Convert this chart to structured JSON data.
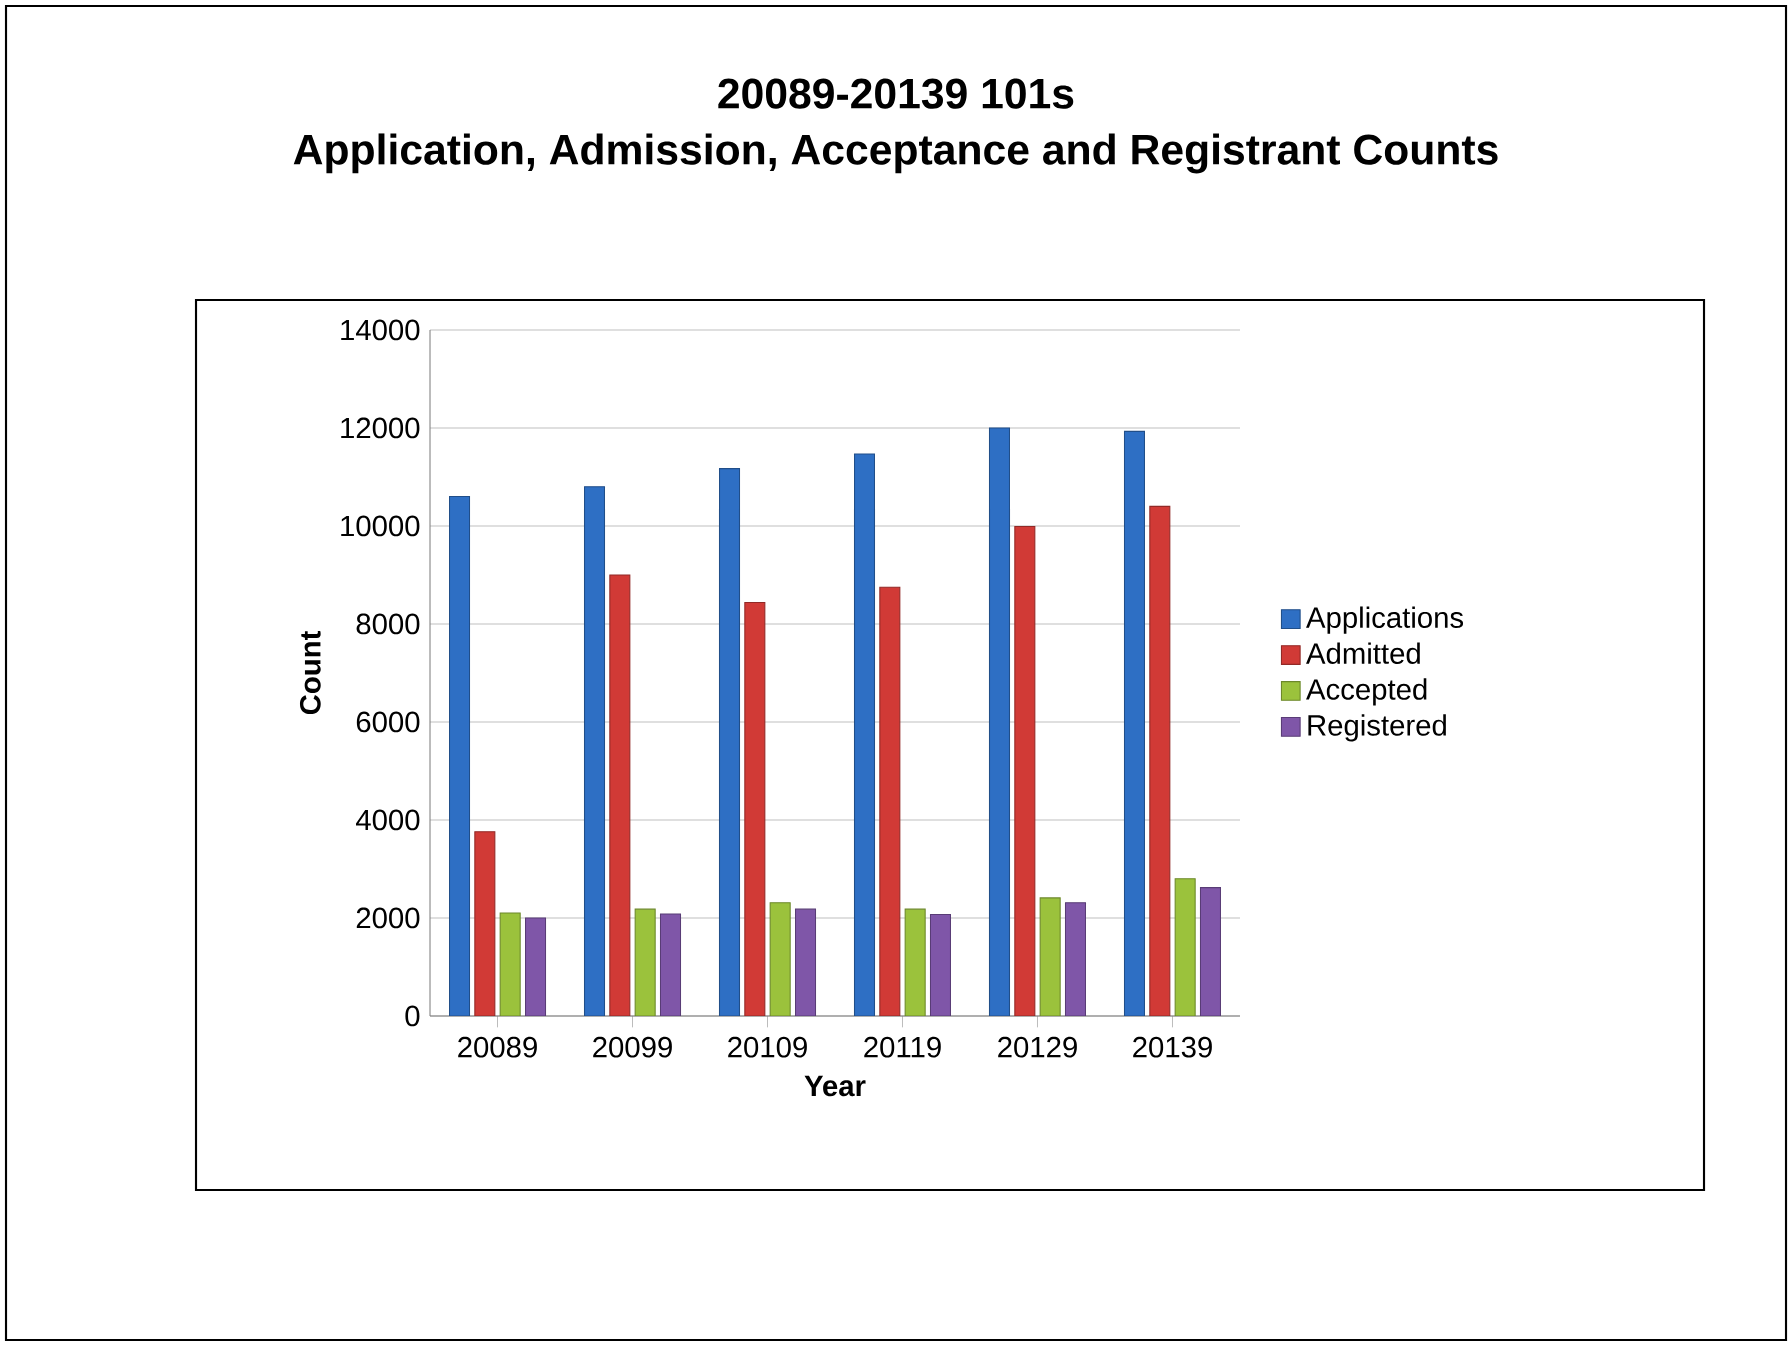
{
  "chart_data": {
    "type": "bar",
    "title": "20089-20139 101s\nApplication, Admission, Acceptance and Registrant Counts",
    "xlabel": "Year",
    "ylabel": "Count",
    "categories": [
      "20089",
      "20099",
      "20109",
      "20119",
      "20129",
      "20139"
    ],
    "series": [
      {
        "name": "Applications",
        "color": "#2e6fc4",
        "values": [
          10600,
          10800,
          11170,
          11470,
          12000,
          11930
        ]
      },
      {
        "name": "Admitted",
        "color": "#d13a36",
        "values": [
          3760,
          9000,
          8440,
          8750,
          9990,
          10400
        ]
      },
      {
        "name": "Accepted",
        "color": "#9bc23c",
        "values": [
          2100,
          2180,
          2310,
          2180,
          2410,
          2800
        ]
      },
      {
        "name": "Registered",
        "color": "#7f56a8",
        "values": [
          2000,
          2080,
          2180,
          2070,
          2310,
          2620
        ]
      }
    ],
    "ylim": [
      0,
      14000
    ],
    "yticks": [
      0,
      2000,
      4000,
      6000,
      8000,
      10000,
      12000,
      14000
    ],
    "grid": "y",
    "legend": "right"
  }
}
